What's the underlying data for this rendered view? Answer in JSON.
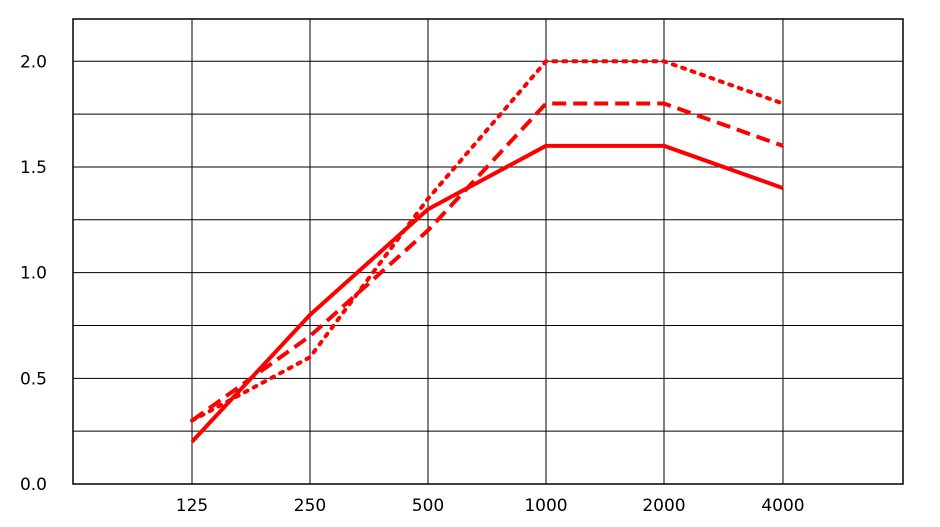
{
  "chart_data": {
    "type": "line",
    "title": "",
    "xlabel": "",
    "ylabel": "",
    "categories": [
      "125",
      "250",
      "500",
      "1000",
      "2000",
      "4000"
    ],
    "ylim": [
      0,
      2.2
    ],
    "yticks": [
      "0.0",
      "0.5",
      "1.0",
      "1.5",
      "2.0"
    ],
    "grid": true,
    "legend": "none",
    "series": [
      {
        "style": "solid",
        "color": "#ff0000",
        "values": [
          0.2,
          0.8,
          1.3,
          1.6,
          1.6,
          1.4
        ]
      },
      {
        "style": "dashed",
        "color": "#ff0000",
        "values": [
          0.3,
          0.7,
          1.2,
          1.8,
          1.8,
          1.6
        ]
      },
      {
        "style": "dotted",
        "color": "#ff0000",
        "values": [
          0.3,
          0.6,
          1.35,
          2.0,
          2.0,
          1.8
        ]
      }
    ]
  }
}
